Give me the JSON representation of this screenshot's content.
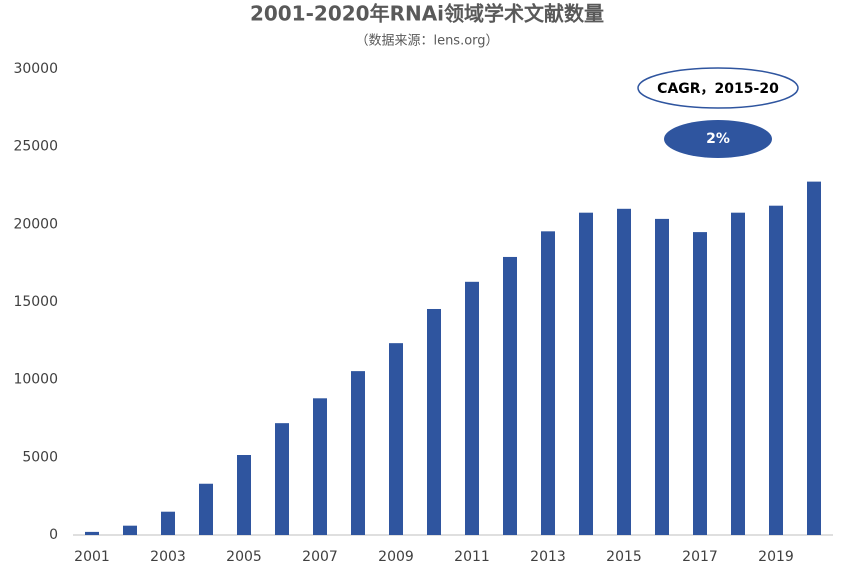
{
  "chart_data": {
    "type": "bar",
    "title": "2001-2020年RNAi领域学术文献数量",
    "subtitle": "（数据来源：lens.org）",
    "annotations": [
      "CAGR，2015-20",
      "2%"
    ],
    "categories": [
      "2001",
      null,
      "2003",
      null,
      "2005",
      null,
      "2007",
      null,
      "2009",
      null,
      "2011",
      null,
      "2013",
      null,
      "2015",
      null,
      "2017",
      null,
      "2019",
      null
    ],
    "values": [
      200,
      600,
      1500,
      3300,
      5150,
      7200,
      8800,
      10550,
      12350,
      14550,
      16300,
      17900,
      19550,
      20750,
      21000,
      20350,
      19500,
      20750,
      21200,
      22750
    ],
    "color": "#2f559f",
    "ylim": [
      0,
      30000
    ],
    "yticks": [
      0,
      5000,
      10000,
      15000,
      20000,
      25000,
      30000
    ],
    "grid": false
  }
}
